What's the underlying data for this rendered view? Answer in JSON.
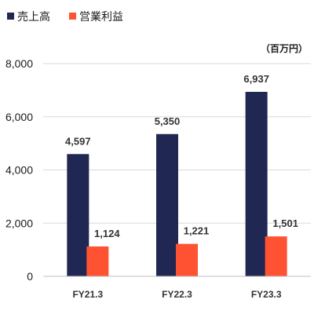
{
  "chart_data": {
    "type": "bar",
    "categories": [
      "FY21.3",
      "FY22.3",
      "FY23.3"
    ],
    "series": [
      {
        "name": "売上高",
        "values": [
          4597,
          5350,
          6937
        ],
        "labels": [
          "4,597",
          "5,350",
          "6,937"
        ],
        "color": "#1f2752"
      },
      {
        "name": "営業利益",
        "values": [
          1124,
          1221,
          1501
        ],
        "labels": [
          "1,124",
          "1,221",
          "1,501"
        ],
        "color": "#ff5233"
      }
    ],
    "unit": "（百万円）",
    "ylim": [
      0,
      8000
    ],
    "yticks": [
      0,
      2000,
      4000,
      6000,
      8000
    ],
    "ytick_labels": [
      "0",
      "2,000",
      "4,000",
      "6,000",
      "8,000"
    ],
    "grid": true,
    "legend_position": "top-left"
  }
}
